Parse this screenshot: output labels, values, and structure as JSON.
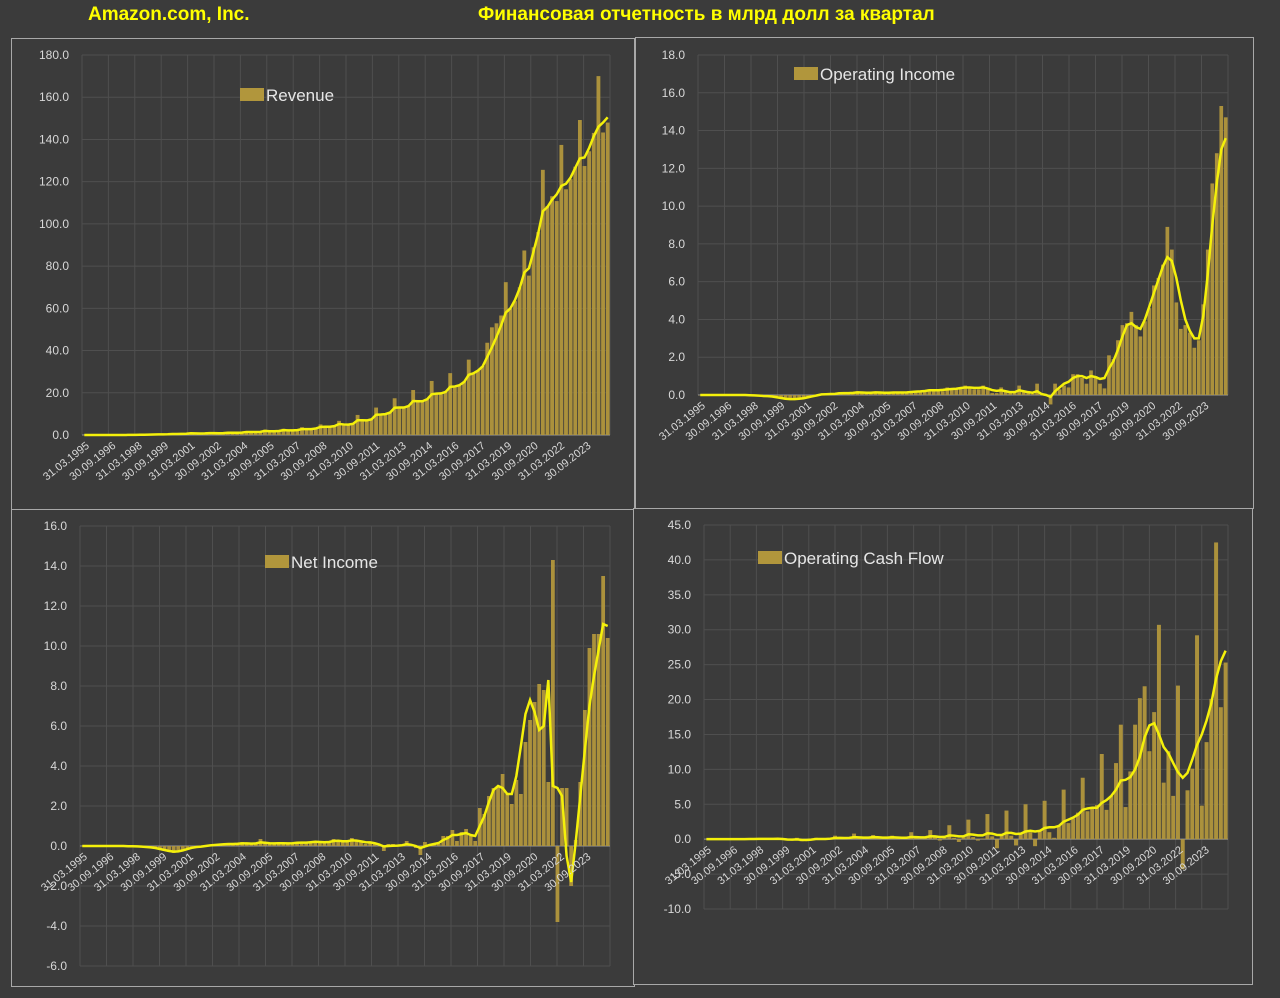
{
  "header": {
    "company": "Amazon.com, Inc.",
    "subtitle": "Финансовая отчетность в млрд долл за квартал"
  },
  "colors": {
    "bar": "#b1963c",
    "trend": "#f4f00a",
    "title": "#ffff00",
    "background": "#3b3b3b"
  },
  "chart_data": [
    {
      "id": "revenue",
      "type": "bar",
      "legend": "Revenue",
      "legend_position": "top-left",
      "grid": true,
      "ylim": [
        0,
        180
      ],
      "yticks": [
        "0.0",
        "20.0",
        "40.0",
        "60.0",
        "80.0",
        "100.0",
        "120.0",
        "140.0",
        "160.0",
        "180.0"
      ],
      "xticks": [
        "31.03.1995",
        "30.09.1996",
        "31.03.1998",
        "30.09.1999",
        "31.03.2001",
        "30.09.2002",
        "31.03.2004",
        "30.09.2005",
        "31.03.2007",
        "30.09.2008",
        "31.03.2010",
        "30.09.2011",
        "31.03.2013",
        "30.09.2014",
        "31.03.2016",
        "30.09.2017",
        "31.03.2019",
        "30.09.2020",
        "31.03.2022",
        "30.09.2023"
      ],
      "values": [
        0.0,
        0.0,
        0.0,
        0.0,
        0.0,
        0.0,
        0.0,
        0.0,
        0.02,
        0.03,
        0.04,
        0.07,
        0.1,
        0.15,
        0.15,
        0.25,
        0.31,
        0.35,
        0.35,
        0.6,
        0.55,
        0.6,
        0.7,
        1.1,
        0.75,
        0.7,
        0.8,
        1.1,
        0.85,
        0.8,
        0.9,
        1.4,
        1.1,
        1.1,
        1.13,
        1.9,
        1.5,
        1.4,
        1.5,
        2.5,
        1.9,
        1.8,
        2.0,
        2.95,
        2.3,
        2.2,
        2.3,
        3.7,
        3.0,
        2.9,
        3.3,
        5.0,
        4.1,
        3.9,
        4.3,
        6.7,
        4.9,
        4.7,
        5.4,
        9.5,
        7.1,
        6.6,
        7.6,
        13.0,
        9.9,
        9.9,
        10.9,
        17.4,
        13.2,
        12.8,
        13.8,
        21.3,
        16.1,
        15.7,
        17.1,
        25.6,
        19.7,
        19.3,
        20.6,
        29.3,
        22.7,
        23.2,
        25.4,
        35.7,
        29.1,
        30.4,
        32.7,
        43.7,
        51.0,
        52.9,
        56.6,
        72.4,
        59.7,
        63.4,
        70.0,
        87.4,
        75.5,
        88.9,
        96.1,
        125.6,
        108.5,
        113.1,
        110.8,
        137.4,
        116.4,
        121.2,
        127.1,
        149.2,
        127.4,
        134.4,
        143.1,
        170.0,
        143.3,
        148.0
      ],
      "trend": [
        0.0,
        0.0,
        0.0,
        0.0,
        0.0,
        0.0,
        0.0,
        0.0,
        0.02,
        0.03,
        0.04,
        0.06,
        0.09,
        0.12,
        0.15,
        0.21,
        0.27,
        0.31,
        0.35,
        0.45,
        0.5,
        0.55,
        0.62,
        0.8,
        0.78,
        0.74,
        0.78,
        0.9,
        0.86,
        0.84,
        0.88,
        1.05,
        1.05,
        1.08,
        1.12,
        1.45,
        1.45,
        1.45,
        1.5,
        1.95,
        1.8,
        1.8,
        1.9,
        2.3,
        2.2,
        2.2,
        2.3,
        2.8,
        2.8,
        2.8,
        3.1,
        3.8,
        3.9,
        3.9,
        4.2,
        5.2,
        5.0,
        4.9,
        5.3,
        7.0,
        7.0,
        6.9,
        7.4,
        9.6,
        9.7,
        9.9,
        10.6,
        12.9,
        13.0,
        13.0,
        13.7,
        16.1,
        16.0,
        16.0,
        16.9,
        19.3,
        19.6,
        19.7,
        20.4,
        22.8,
        23.0,
        23.6,
        25.1,
        28.5,
        29.2,
        30.5,
        32.5,
        37.0,
        41.5,
        46.5,
        52.0,
        58.0,
        60.0,
        64.0,
        69.5,
        77.0,
        79.0,
        87.0,
        95.5,
        106.0,
        108.0,
        111.5,
        114.0,
        118.0,
        119.0,
        122.0,
        126.5,
        131.0,
        131.5,
        136.0,
        141.5,
        146.0,
        148.0,
        150.5
      ]
    },
    {
      "id": "operating-income",
      "type": "bar",
      "legend": "Operating Income",
      "legend_position": "top-left",
      "grid": true,
      "ylim": [
        0,
        18
      ],
      "yticks": [
        "0.0",
        "2.0",
        "4.0",
        "6.0",
        "8.0",
        "10.0",
        "12.0",
        "14.0",
        "16.0",
        "18.0"
      ],
      "xticks": [
        "31.03.1995",
        "30.09.1996",
        "31.03.1998",
        "30.09.1999",
        "31.03.2001",
        "30.09.2002",
        "31.03.2004",
        "30.09.2005",
        "31.03.2007",
        "30.09.2008",
        "31.03.2010",
        "30.09.2011",
        "31.03.2013",
        "30.09.2014",
        "31.03.2016",
        "30.09.2017",
        "31.03.2019",
        "30.09.2020",
        "31.03.2022",
        "30.09.2023"
      ],
      "values": [
        0.0,
        0.0,
        0.0,
        0.0,
        0.0,
        0.0,
        0.0,
        0.0,
        0.0,
        0.0,
        -0.01,
        -0.01,
        -0.02,
        -0.03,
        -0.05,
        -0.06,
        -0.1,
        -0.15,
        -0.2,
        -0.25,
        -0.25,
        -0.2,
        -0.2,
        -0.15,
        -0.1,
        -0.05,
        0.0,
        0.05,
        0.05,
        0.05,
        0.05,
        0.15,
        0.1,
        0.1,
        0.12,
        0.2,
        0.1,
        0.1,
        0.1,
        0.17,
        0.12,
        0.1,
        0.1,
        0.15,
        0.15,
        0.1,
        0.12,
        0.18,
        0.2,
        0.18,
        0.2,
        0.3,
        0.25,
        0.2,
        0.2,
        0.4,
        0.3,
        0.3,
        0.4,
        0.5,
        0.4,
        0.3,
        0.3,
        0.5,
        0.3,
        0.1,
        0.1,
        0.4,
        0.2,
        0.1,
        0.1,
        0.5,
        0.2,
        0.1,
        0.05,
        0.6,
        0.1,
        0.0,
        -0.5,
        0.6,
        0.3,
        0.5,
        0.4,
        1.1,
        1.1,
        0.9,
        0.6,
        1.3,
        1.0,
        0.6,
        0.35,
        2.1,
        1.9,
        2.9,
        3.7,
        3.8,
        4.4,
        3.7,
        3.1,
        3.9,
        4.6,
        5.8,
        6.2,
        6.9,
        8.9,
        7.7,
        4.9,
        3.5,
        3.7,
        3.3,
        2.5,
        2.9,
        4.8,
        7.7,
        11.2,
        12.8,
        15.3,
        14.7
      ],
      "trend": [
        0.0,
        0.0,
        0.0,
        0.0,
        0.0,
        0.0,
        0.0,
        0.0,
        0.0,
        0.0,
        0.0,
        -0.01,
        -0.02,
        -0.03,
        -0.05,
        -0.06,
        -0.08,
        -0.12,
        -0.16,
        -0.2,
        -0.22,
        -0.22,
        -0.2,
        -0.17,
        -0.12,
        -0.07,
        -0.02,
        0.03,
        0.04,
        0.05,
        0.06,
        0.09,
        0.1,
        0.1,
        0.11,
        0.14,
        0.13,
        0.12,
        0.12,
        0.14,
        0.13,
        0.12,
        0.12,
        0.13,
        0.13,
        0.13,
        0.14,
        0.16,
        0.18,
        0.19,
        0.21,
        0.25,
        0.25,
        0.25,
        0.27,
        0.3,
        0.32,
        0.33,
        0.37,
        0.4,
        0.4,
        0.38,
        0.38,
        0.4,
        0.34,
        0.26,
        0.22,
        0.25,
        0.2,
        0.15,
        0.15,
        0.25,
        0.2,
        0.15,
        0.12,
        0.2,
        0.05,
        0.0,
        -0.1,
        0.2,
        0.4,
        0.6,
        0.7,
        0.9,
        1.0,
        1.0,
        0.9,
        1.0,
        0.95,
        0.85,
        0.9,
        1.4,
        1.8,
        2.4,
        3.1,
        3.7,
        3.8,
        3.6,
        3.5,
        4.0,
        4.7,
        5.4,
        6.1,
        6.8,
        7.3,
        7.1,
        6.2,
        5.0,
        4.0,
        3.4,
        3.0,
        3.0,
        4.2,
        6.4,
        9.0,
        11.2,
        13.0,
        13.6
      ]
    },
    {
      "id": "net-income",
      "type": "bar",
      "legend": "Net Income",
      "legend_position": "top-left",
      "grid": true,
      "ylim": [
        -6,
        16
      ],
      "yticks": [
        "-6.0",
        "-4.0",
        "-2.0",
        "0.0",
        "2.0",
        "4.0",
        "6.0",
        "8.0",
        "10.0",
        "12.0",
        "14.0",
        "16.0"
      ],
      "xticks": [
        "31.03.1995",
        "30.09.1996",
        "31.03.1998",
        "30.09.1999",
        "31.03.2001",
        "30.09.2002",
        "31.03.2004",
        "30.09.2005",
        "31.03.2007",
        "30.09.2008",
        "31.03.2010",
        "30.09.2011",
        "31.03.2013",
        "30.09.2014",
        "31.03.2016",
        "30.09.2017",
        "31.03.2019",
        "30.09.2020",
        "31.03.2022",
        "30.09.2023"
      ],
      "values": [
        0.0,
        0.0,
        0.0,
        0.0,
        0.0,
        0.0,
        0.0,
        0.0,
        0.0,
        0.0,
        -0.01,
        -0.01,
        -0.02,
        -0.03,
        -0.05,
        -0.08,
        -0.12,
        -0.2,
        -0.25,
        -0.3,
        -0.35,
        -0.25,
        -0.2,
        -0.1,
        -0.05,
        0.0,
        -0.05,
        0.0,
        0.05,
        0.05,
        0.1,
        0.1,
        0.1,
        0.1,
        0.1,
        0.2,
        0.1,
        0.1,
        0.1,
        0.35,
        0.15,
        0.1,
        0.1,
        0.2,
        0.15,
        0.1,
        0.15,
        0.2,
        0.2,
        0.15,
        0.2,
        0.25,
        0.2,
        0.15,
        0.2,
        0.35,
        0.3,
        0.2,
        0.2,
        0.4,
        0.3,
        0.2,
        0.1,
        0.2,
        0.15,
        0.0,
        -0.25,
        0.1,
        0.1,
        0.0,
        0.0,
        0.25,
        0.1,
        -0.1,
        -0.45,
        0.2,
        0.0,
        0.1,
        0.1,
        0.5,
        0.5,
        0.8,
        0.25,
        0.7,
        0.85,
        0.5,
        0.25,
        1.9,
        1.6,
        2.5,
        2.9,
        3.0,
        3.6,
        2.6,
        2.1,
        3.3,
        2.6,
        5.2,
        6.3,
        7.2,
        8.1,
        7.8,
        3.2,
        14.3,
        -3.8,
        2.9,
        2.9,
        -2.0,
        0.3,
        3.2,
        6.8,
        9.9,
        10.6,
        10.6,
        13.5,
        10.4
      ],
      "trend": [
        0.0,
        0.0,
        0.0,
        0.0,
        0.0,
        0.0,
        0.0,
        0.0,
        0.0,
        0.0,
        -0.01,
        -0.01,
        -0.02,
        -0.03,
        -0.05,
        -0.07,
        -0.1,
        -0.15,
        -0.2,
        -0.25,
        -0.28,
        -0.27,
        -0.22,
        -0.15,
        -0.09,
        -0.05,
        -0.03,
        0.0,
        0.03,
        0.05,
        0.07,
        0.09,
        0.1,
        0.1,
        0.11,
        0.13,
        0.13,
        0.12,
        0.13,
        0.18,
        0.16,
        0.14,
        0.13,
        0.14,
        0.14,
        0.13,
        0.14,
        0.16,
        0.17,
        0.17,
        0.19,
        0.21,
        0.2,
        0.19,
        0.2,
        0.25,
        0.26,
        0.24,
        0.24,
        0.28,
        0.27,
        0.23,
        0.19,
        0.18,
        0.14,
        0.07,
        -0.02,
        0.0,
        0.01,
        0.02,
        0.04,
        0.09,
        0.06,
        0.0,
        -0.1,
        -0.02,
        0.05,
        0.1,
        0.15,
        0.3,
        0.4,
        0.55,
        0.55,
        0.6,
        0.65,
        0.55,
        0.5,
        1.0,
        1.5,
        2.2,
        2.8,
        3.0,
        2.9,
        2.6,
        2.6,
        3.5,
        5.0,
        6.6,
        7.3,
        6.7,
        5.8,
        6.0,
        8.3,
        3.0,
        2.9,
        2.5,
        -0.5,
        -1.8,
        0.2,
        2.5,
        4.8,
        7.0,
        8.5,
        9.8,
        11.1,
        11.0
      ]
    },
    {
      "id": "operating-cash-flow",
      "type": "bar",
      "legend": "Operating Cash Flow",
      "legend_position": "top-left",
      "grid": true,
      "ylim": [
        -10,
        45
      ],
      "yticks": [
        "-10.0",
        "-5.0",
        "0.0",
        "5.0",
        "10.0",
        "15.0",
        "20.0",
        "25.0",
        "30.0",
        "35.0",
        "40.0",
        "45.0"
      ],
      "xticks": [
        "31.03.1995",
        "30.09.1996",
        "31.03.1998",
        "30.09.1999",
        "31.03.2001",
        "30.09.2002",
        "31.03.2004",
        "30.09.2005",
        "31.03.2007",
        "30.09.2008",
        "31.03.2010",
        "30.09.2011",
        "31.03.2013",
        "30.09.2014",
        "31.03.2016",
        "30.09.2017",
        "31.03.2019",
        "30.09.2020",
        "31.03.2022",
        "30.09.2023"
      ],
      "values": [
        0.0,
        0.0,
        0.0,
        0.0,
        0.0,
        0.0,
        0.0,
        0.0,
        0.02,
        0.02,
        0.05,
        0.05,
        0.05,
        0.05,
        0.05,
        0.1,
        -0.1,
        -0.2,
        -0.1,
        0.2,
        -0.3,
        -0.2,
        0.1,
        0.2,
        0.0,
        -0.1,
        0.2,
        0.5,
        0.1,
        0.1,
        0.2,
        0.8,
        0.1,
        0.1,
        0.2,
        0.6,
        0.2,
        0.0,
        0.2,
        0.5,
        0.1,
        0.0,
        0.2,
        1.0,
        0.2,
        0.0,
        0.2,
        1.3,
        0.3,
        -0.2,
        0.2,
        2.0,
        0.2,
        -0.4,
        0.3,
        2.8,
        0.3,
        -0.2,
        0.1,
        3.6,
        0.4,
        -1.3,
        0.6,
        4.1,
        0.5,
        -0.9,
        0.8,
        5.0,
        1.0,
        -1.0,
        1.3,
        5.5,
        1.0,
        0.2,
        1.9,
        7.1,
        2.3,
        3.0,
        3.8,
        8.8,
        4.0,
        4.4,
        4.9,
        12.2,
        4.2,
        6.2,
        10.9,
        16.4,
        4.6,
        9.7,
        16.4,
        20.2,
        21.9,
        12.6,
        18.2,
        30.7,
        8.1,
        12.6,
        6.2,
        22.0,
        -4.3,
        7.0,
        10.1,
        29.2,
        4.8,
        13.9,
        20.1,
        42.5,
        18.9,
        25.3
      ],
      "trend": [
        0.0,
        0.0,
        0.0,
        0.0,
        0.0,
        0.0,
        0.0,
        0.0,
        0.01,
        0.02,
        0.03,
        0.04,
        0.05,
        0.05,
        0.05,
        0.06,
        0.02,
        -0.04,
        -0.07,
        -0.03,
        -0.1,
        -0.12,
        -0.06,
        0.02,
        0.03,
        0.02,
        0.07,
        0.17,
        0.18,
        0.17,
        0.19,
        0.3,
        0.26,
        0.22,
        0.22,
        0.3,
        0.27,
        0.22,
        0.22,
        0.28,
        0.24,
        0.2,
        0.2,
        0.32,
        0.3,
        0.26,
        0.28,
        0.42,
        0.4,
        0.32,
        0.33,
        0.55,
        0.5,
        0.4,
        0.42,
        0.7,
        0.65,
        0.55,
        0.55,
        0.85,
        0.8,
        0.6,
        0.6,
        0.9,
        0.9,
        0.75,
        0.8,
        1.1,
        1.2,
        1.1,
        1.2,
        1.6,
        1.7,
        1.7,
        1.9,
        2.5,
        2.8,
        3.1,
        3.5,
        4.2,
        4.4,
        4.5,
        4.5,
        5.2,
        5.6,
        6.2,
        7.1,
        8.4,
        8.5,
        8.9,
        10.0,
        11.8,
        14.6,
        16.3,
        16.6,
        15.0,
        13.2,
        12.3,
        10.9,
        9.6,
        8.8,
        9.5,
        11.4,
        13.5,
        15.0,
        17.0,
        19.5,
        23.0,
        25.5,
        27.0
      ]
    }
  ]
}
